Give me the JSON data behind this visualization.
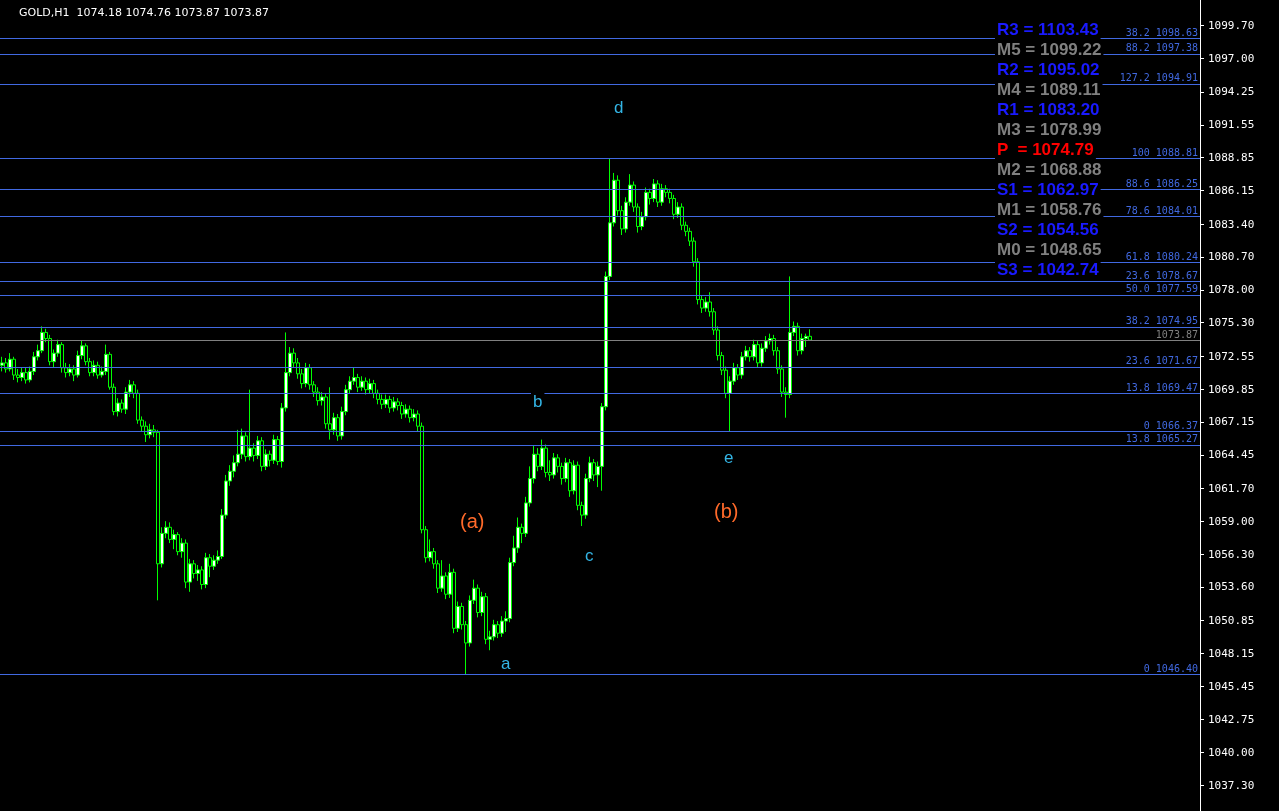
{
  "chart_data": {
    "type": "candlestick",
    "title": "GOLD,H1  1074.18 1074.76 1073.87 1073.87",
    "color": "#00ff00",
    "categories": [
      null,
      null,
      null,
      null,
      null,
      null,
      null,
      null,
      null,
      null,
      null,
      null,
      null,
      null,
      null,
      null,
      null,
      null,
      null,
      null,
      null,
      null,
      null,
      null,
      null,
      null,
      null,
      null,
      null,
      null,
      null,
      null,
      null,
      null,
      null,
      null,
      null,
      null,
      null,
      null,
      null,
      null,
      null,
      null,
      null,
      null,
      null,
      null,
      null,
      null,
      null,
      null,
      null,
      null,
      null,
      null,
      null,
      null,
      null,
      null,
      null,
      null,
      null,
      null,
      null,
      null,
      null,
      null,
      null,
      null,
      null,
      null,
      null,
      null,
      null,
      null,
      null,
      null,
      null,
      null,
      null,
      null,
      null,
      null,
      null,
      null,
      null,
      null,
      null,
      null,
      null,
      null,
      null,
      null,
      null,
      null,
      null,
      null,
      null,
      null,
      null,
      null,
      null,
      null,
      null,
      null,
      null,
      null,
      null,
      null,
      null,
      null,
      null,
      null,
      null,
      null,
      null,
      null,
      null,
      null,
      null,
      null,
      null,
      null,
      null,
      null,
      null,
      null,
      null,
      null,
      null,
      null,
      null,
      null,
      null,
      null,
      null,
      null,
      null,
      null,
      null,
      null,
      null,
      null,
      null,
      null,
      null,
      null,
      null,
      null,
      null,
      null,
      null,
      null,
      null,
      null,
      null,
      null,
      null,
      null,
      null,
      null,
      null,
      null,
      null,
      null,
      null,
      null,
      null,
      null,
      null,
      null,
      null,
      null,
      null,
      null,
      null,
      null,
      null,
      null,
      null,
      null,
      null,
      null,
      null,
      null,
      null,
      null,
      null,
      null,
      null,
      null,
      null,
      null,
      null,
      null,
      null,
      null,
      null,
      null,
      null,
      null,
      null,
      null,
      null,
      null,
      null,
      null,
      null,
      null,
      null,
      null,
      null,
      null,
      null,
      null,
      null,
      null,
      null,
      null,
      null,
      null,
      null,
      null,
      null,
      null,
      null,
      null,
      null,
      null,
      null,
      null,
      null,
      null,
      null,
      null,
      null,
      null,
      null,
      null,
      null,
      null,
      null,
      null,
      null,
      null,
      null,
      null,
      null,
      null,
      null,
      null,
      null,
      null,
      null,
      null,
      null,
      null,
      null,
      null,
      null,
      null,
      null,
      null,
      null,
      null,
      null,
      null,
      null,
      null,
      null,
      null,
      null,
      null,
      null,
      null,
      null,
      null,
      null,
      null,
      null,
      null,
      null,
      null,
      null,
      null,
      null,
      null,
      null,
      null,
      null,
      null,
      null,
      null,
      null,
      null,
      null,
      null,
      null,
      null
    ],
    "ohlc": [
      [
        1071.8,
        1072.5,
        1071.3,
        1072.0
      ],
      [
        1072.0,
        1072.4,
        1071.2,
        1071.5
      ],
      [
        1071.5,
        1072.8,
        1071.3,
        1072.3
      ],
      [
        1072.3,
        1072.5,
        1070.6,
        1071.0
      ],
      [
        1071.0,
        1071.5,
        1070.4,
        1070.8
      ],
      [
        1070.8,
        1071.6,
        1070.5,
        1071.2
      ],
      [
        1071.2,
        1071.6,
        1070.3,
        1070.6
      ],
      [
        1070.6,
        1071.7,
        1070.4,
        1071.3
      ],
      [
        1071.3,
        1072.9,
        1071.0,
        1072.5
      ],
      [
        1072.5,
        1073.5,
        1072.2,
        1073.0
      ],
      [
        1073.0,
        1075.0,
        1072.8,
        1074.5
      ],
      [
        1074.5,
        1074.8,
        1073.7,
        1074.0
      ],
      [
        1074.0,
        1074.3,
        1071.8,
        1072.1
      ],
      [
        1072.1,
        1073.1,
        1071.6,
        1072.8
      ],
      [
        1072.8,
        1073.9,
        1072.5,
        1073.5
      ],
      [
        1073.5,
        1073.7,
        1071.2,
        1071.6
      ],
      [
        1071.6,
        1072.0,
        1070.8,
        1071.2
      ],
      [
        1071.2,
        1071.9,
        1070.9,
        1071.5
      ],
      [
        1071.5,
        1071.8,
        1070.5,
        1071.0
      ],
      [
        1071.0,
        1073.0,
        1070.8,
        1072.6
      ],
      [
        1072.6,
        1073.8,
        1072.3,
        1073.4
      ],
      [
        1073.4,
        1073.6,
        1071.8,
        1072.1
      ],
      [
        1072.1,
        1072.4,
        1070.9,
        1071.2
      ],
      [
        1071.2,
        1072.2,
        1070.9,
        1071.8
      ],
      [
        1071.8,
        1072.1,
        1070.7,
        1071.0
      ],
      [
        1071.0,
        1071.7,
        1070.8,
        1071.3
      ],
      [
        1071.3,
        1073.5,
        1071.0,
        1072.7
      ],
      [
        1072.7,
        1072.9,
        1069.8,
        1070.0
      ],
      [
        1070.0,
        1070.3,
        1067.7,
        1068.0
      ],
      [
        1068.0,
        1069.1,
        1067.6,
        1068.7
      ],
      [
        1068.7,
        1069.0,
        1067.9,
        1068.2
      ],
      [
        1068.2,
        1070.0,
        1067.8,
        1069.6
      ],
      [
        1069.6,
        1070.6,
        1069.2,
        1070.2
      ],
      [
        1070.2,
        1070.5,
        1069.1,
        1069.5
      ],
      [
        1069.5,
        1069.8,
        1067.0,
        1067.3
      ],
      [
        1067.3,
        1067.6,
        1066.4,
        1066.8
      ],
      [
        1066.8,
        1067.2,
        1065.5,
        1066.1
      ],
      [
        1066.1,
        1067.0,
        1065.8,
        1066.5
      ],
      [
        1066.5,
        1066.9,
        1065.9,
        1066.3
      ],
      [
        1066.3,
        1066.5,
        1052.5,
        1055.5
      ],
      [
        1055.5,
        1058.5,
        1055.2,
        1058.0
      ],
      [
        1058.0,
        1059.0,
        1057.6,
        1058.5
      ],
      [
        1058.5,
        1058.9,
        1057.2,
        1057.5
      ],
      [
        1057.5,
        1058.3,
        1056.7,
        1057.9
      ],
      [
        1057.9,
        1058.1,
        1056.2,
        1056.5
      ],
      [
        1056.5,
        1057.6,
        1056.0,
        1057.2
      ],
      [
        1057.2,
        1057.5,
        1053.5,
        1054.0
      ],
      [
        1054.0,
        1055.9,
        1053.2,
        1055.5
      ],
      [
        1055.5,
        1055.8,
        1054.3,
        1054.7
      ],
      [
        1054.7,
        1055.4,
        1054.1,
        1055.0
      ],
      [
        1055.0,
        1055.3,
        1053.4,
        1053.8
      ],
      [
        1053.8,
        1056.4,
        1053.5,
        1056.0
      ],
      [
        1056.0,
        1056.3,
        1054.4,
        1055.3
      ],
      [
        1055.3,
        1056.2,
        1055.0,
        1055.8
      ],
      [
        1055.8,
        1056.6,
        1055.5,
        1056.1
      ],
      [
        1056.1,
        1060.0,
        1055.9,
        1059.5
      ],
      [
        1059.5,
        1062.8,
        1059.2,
        1062.3
      ],
      [
        1062.3,
        1063.6,
        1061.9,
        1063.1
      ],
      [
        1063.1,
        1064.4,
        1062.6,
        1063.8
      ],
      [
        1063.8,
        1066.5,
        1063.5,
        1064.5
      ],
      [
        1064.5,
        1066.6,
        1064.1,
        1066.0
      ],
      [
        1066.0,
        1066.3,
        1063.9,
        1064.3
      ],
      [
        1064.3,
        1069.8,
        1064.0,
        1065.0
      ],
      [
        1065.0,
        1065.4,
        1063.9,
        1064.4
      ],
      [
        1064.4,
        1066.0,
        1064.1,
        1065.6
      ],
      [
        1065.6,
        1065.9,
        1063.1,
        1063.5
      ],
      [
        1063.5,
        1064.9,
        1063.2,
        1064.5
      ],
      [
        1064.5,
        1064.8,
        1063.5,
        1064.0
      ],
      [
        1064.0,
        1066.1,
        1063.7,
        1065.7
      ],
      [
        1065.7,
        1066.0,
        1063.6,
        1063.9
      ],
      [
        1063.9,
        1068.7,
        1063.4,
        1068.3
      ],
      [
        1068.3,
        1074.5,
        1068.0,
        1071.2
      ],
      [
        1071.2,
        1073.3,
        1070.9,
        1072.8
      ],
      [
        1072.8,
        1073.2,
        1071.6,
        1072.0
      ],
      [
        1072.0,
        1072.4,
        1070.7,
        1071.1
      ],
      [
        1071.1,
        1071.5,
        1069.9,
        1070.3
      ],
      [
        1070.3,
        1072.0,
        1070.0,
        1071.6
      ],
      [
        1071.6,
        1071.9,
        1069.8,
        1070.2
      ],
      [
        1070.2,
        1070.5,
        1069.2,
        1069.6
      ],
      [
        1069.6,
        1070.0,
        1068.5,
        1068.9
      ],
      [
        1068.9,
        1069.6,
        1068.5,
        1069.2
      ],
      [
        1069.2,
        1069.5,
        1066.6,
        1067.0
      ],
      [
        1067.0,
        1070.0,
        1065.7,
        1066.5
      ],
      [
        1066.5,
        1067.9,
        1066.1,
        1067.5
      ],
      [
        1067.5,
        1067.8,
        1065.6,
        1066.0
      ],
      [
        1066.0,
        1068.4,
        1065.7,
        1068.0
      ],
      [
        1068.0,
        1070.2,
        1067.7,
        1069.8
      ],
      [
        1069.8,
        1070.9,
        1069.5,
        1070.5
      ],
      [
        1070.5,
        1071.6,
        1070.2,
        1070.8
      ],
      [
        1070.8,
        1071.1,
        1069.6,
        1070.0
      ],
      [
        1070.0,
        1070.9,
        1069.7,
        1070.5
      ],
      [
        1070.5,
        1070.8,
        1069.4,
        1069.8
      ],
      [
        1069.8,
        1070.7,
        1069.5,
        1070.3
      ],
      [
        1070.3,
        1070.6,
        1069.1,
        1069.5
      ],
      [
        1069.5,
        1069.8,
        1068.6,
        1069.0
      ],
      [
        1069.0,
        1069.4,
        1068.2,
        1068.6
      ],
      [
        1068.6,
        1069.4,
        1068.3,
        1069.0
      ],
      [
        1069.0,
        1069.3,
        1067.9,
        1068.3
      ],
      [
        1068.3,
        1069.2,
        1068.0,
        1068.8
      ],
      [
        1068.8,
        1069.1,
        1068.1,
        1068.5
      ],
      [
        1068.5,
        1068.8,
        1067.4,
        1067.8
      ],
      [
        1067.8,
        1068.6,
        1067.5,
        1068.2
      ],
      [
        1068.2,
        1068.5,
        1067.1,
        1067.5
      ],
      [
        1067.5,
        1068.2,
        1067.2,
        1067.8
      ],
      [
        1067.8,
        1068.1,
        1066.4,
        1066.8
      ],
      [
        1066.8,
        1067.1,
        1058.0,
        1058.3
      ],
      [
        1058.3,
        1058.6,
        1055.6,
        1056.0
      ],
      [
        1056.0,
        1057.5,
        1055.7,
        1056.5
      ],
      [
        1056.5,
        1056.8,
        1055.1,
        1055.5
      ],
      [
        1055.5,
        1055.8,
        1053.1,
        1053.5
      ],
      [
        1053.5,
        1055.8,
        1053.2,
        1054.5
      ],
      [
        1054.5,
        1054.8,
        1052.6,
        1053.0
      ],
      [
        1053.0,
        1055.5,
        1052.7,
        1054.8
      ],
      [
        1054.8,
        1055.1,
        1049.8,
        1050.2
      ],
      [
        1050.2,
        1052.4,
        1049.9,
        1052.0
      ],
      [
        1052.0,
        1052.3,
        1050.1,
        1050.5
      ],
      [
        1050.5,
        1050.8,
        1046.4,
        1049.0
      ],
      [
        1049.0,
        1052.9,
        1048.7,
        1052.5
      ],
      [
        1052.5,
        1054.2,
        1052.2,
        1053.5
      ],
      [
        1053.5,
        1053.8,
        1051.1,
        1051.5
      ],
      [
        1051.5,
        1053.2,
        1051.2,
        1052.8
      ],
      [
        1052.8,
        1053.1,
        1048.9,
        1049.3
      ],
      [
        1049.3,
        1050.0,
        1048.4,
        1049.5
      ],
      [
        1049.5,
        1050.9,
        1049.2,
        1050.5
      ],
      [
        1050.5,
        1050.8,
        1049.4,
        1049.8
      ],
      [
        1049.8,
        1051.2,
        1049.5,
        1050.8
      ],
      [
        1050.8,
        1051.6,
        1049.9,
        1051.0
      ],
      [
        1051.0,
        1056.0,
        1050.7,
        1055.6
      ],
      [
        1055.6,
        1057.8,
        1055.3,
        1056.8
      ],
      [
        1056.8,
        1059.3,
        1056.4,
        1058.5
      ],
      [
        1058.5,
        1058.8,
        1057.2,
        1058.0
      ],
      [
        1058.0,
        1061.0,
        1057.7,
        1060.5
      ],
      [
        1060.5,
        1063.5,
        1060.2,
        1062.5
      ],
      [
        1062.5,
        1065.2,
        1062.1,
        1064.5
      ],
      [
        1064.5,
        1065.0,
        1063.1,
        1063.5
      ],
      [
        1063.5,
        1065.7,
        1063.2,
        1065.0
      ],
      [
        1065.0,
        1065.3,
        1062.6,
        1063.0
      ],
      [
        1063.0,
        1064.0,
        1062.3,
        1062.8
      ],
      [
        1062.8,
        1064.6,
        1062.5,
        1064.2
      ],
      [
        1064.2,
        1064.5,
        1063.0,
        1063.5
      ],
      [
        1063.5,
        1063.8,
        1062.0,
        1062.5
      ],
      [
        1062.5,
        1064.2,
        1062.2,
        1063.8
      ],
      [
        1063.8,
        1064.1,
        1061.0,
        1061.5
      ],
      [
        1061.5,
        1064.0,
        1061.2,
        1063.6
      ],
      [
        1063.6,
        1063.9,
        1059.9,
        1060.3
      ],
      [
        1060.3,
        1060.6,
        1058.6,
        1059.5
      ],
      [
        1059.5,
        1062.9,
        1059.2,
        1062.5
      ],
      [
        1062.5,
        1064.3,
        1062.2,
        1063.8
      ],
      [
        1063.8,
        1064.1,
        1062.3,
        1062.8
      ],
      [
        1062.8,
        1063.9,
        1061.8,
        1063.5
      ],
      [
        1063.5,
        1068.7,
        1061.5,
        1068.4
      ],
      [
        1068.4,
        1079.5,
        1068.1,
        1079.1
      ],
      [
        1079.1,
        1088.8,
        1078.8,
        1083.5
      ],
      [
        1083.5,
        1087.6,
        1083.2,
        1087.0
      ],
      [
        1087.0,
        1087.4,
        1084.1,
        1084.5
      ],
      [
        1084.5,
        1084.9,
        1082.5,
        1083.0
      ],
      [
        1083.0,
        1085.6,
        1082.7,
        1085.2
      ],
      [
        1085.2,
        1087.5,
        1084.9,
        1086.6
      ],
      [
        1086.6,
        1086.9,
        1084.4,
        1084.8
      ],
      [
        1084.8,
        1085.1,
        1082.7,
        1083.2
      ],
      [
        1083.2,
        1084.4,
        1082.9,
        1084.0
      ],
      [
        1084.0,
        1086.4,
        1083.7,
        1086.0
      ],
      [
        1086.0,
        1086.3,
        1085.0,
        1085.5
      ],
      [
        1085.5,
        1087.1,
        1085.2,
        1086.7
      ],
      [
        1086.7,
        1087.0,
        1084.8,
        1085.2
      ],
      [
        1085.2,
        1086.7,
        1084.9,
        1086.3
      ],
      [
        1086.3,
        1086.6,
        1085.6,
        1086.0
      ],
      [
        1086.0,
        1086.3,
        1085.1,
        1085.5
      ],
      [
        1085.5,
        1085.8,
        1083.8,
        1084.2
      ],
      [
        1084.2,
        1085.2,
        1083.9,
        1084.8
      ],
      [
        1084.8,
        1085.1,
        1082.9,
        1083.3
      ],
      [
        1083.3,
        1083.6,
        1082.4,
        1082.8
      ],
      [
        1082.8,
        1083.1,
        1081.6,
        1082.0
      ],
      [
        1082.0,
        1082.3,
        1079.9,
        1080.3
      ],
      [
        1080.3,
        1080.6,
        1076.8,
        1077.2
      ],
      [
        1077.2,
        1077.5,
        1076.1,
        1076.5
      ],
      [
        1076.5,
        1077.4,
        1076.2,
        1077.0
      ],
      [
        1077.0,
        1077.8,
        1075.8,
        1076.2
      ],
      [
        1076.2,
        1076.5,
        1074.3,
        1074.7
      ],
      [
        1074.7,
        1075.0,
        1072.2,
        1072.6
      ],
      [
        1072.6,
        1072.9,
        1071.0,
        1071.4
      ],
      [
        1071.4,
        1071.7,
        1069.1,
        1069.5
      ],
      [
        1069.5,
        1070.9,
        1066.4,
        1070.5
      ],
      [
        1070.5,
        1072.0,
        1070.2,
        1071.6
      ],
      [
        1071.6,
        1071.9,
        1070.6,
        1071.0
      ],
      [
        1071.0,
        1072.9,
        1070.7,
        1072.5
      ],
      [
        1072.5,
        1073.4,
        1072.2,
        1073.0
      ],
      [
        1073.0,
        1073.3,
        1072.1,
        1072.5
      ],
      [
        1072.5,
        1073.9,
        1072.2,
        1073.5
      ],
      [
        1073.5,
        1073.8,
        1071.6,
        1072.0
      ],
      [
        1072.0,
        1073.6,
        1071.7,
        1073.2
      ],
      [
        1073.2,
        1074.2,
        1072.9,
        1073.8
      ],
      [
        1073.8,
        1074.4,
        1073.5,
        1074.0
      ],
      [
        1074.0,
        1074.3,
        1072.6,
        1073.0
      ],
      [
        1073.0,
        1073.3,
        1071.1,
        1071.5
      ],
      [
        1071.5,
        1071.8,
        1069.2,
        1069.6
      ],
      [
        1069.6,
        1070.0,
        1067.5,
        1069.4
      ],
      [
        1069.4,
        1079.1,
        1069.1,
        1074.5
      ],
      [
        1074.5,
        1075.4,
        1074.2,
        1075.0
      ],
      [
        1075.0,
        1075.3,
        1072.6,
        1073.0
      ],
      [
        1073.0,
        1074.4,
        1072.7,
        1074.0
      ],
      [
        1074.0,
        1074.4,
        1073.3,
        1074.18
      ],
      [
        1074.18,
        1074.76,
        1073.87,
        1073.87
      ],
      null,
      null,
      null,
      null,
      null,
      null,
      null,
      null,
      null,
      null,
      null,
      null,
      null,
      null,
      null,
      null,
      null,
      null,
      null,
      null,
      null,
      null,
      null,
      null,
      null,
      null,
      null,
      null,
      null,
      null,
      null,
      null,
      null,
      null,
      null,
      null,
      null,
      null,
      null,
      null,
      null,
      null,
      null,
      null,
      null,
      null,
      null,
      null,
      null,
      null,
      null,
      null,
      null,
      null,
      null,
      null,
      null,
      null,
      null,
      null,
      null,
      null,
      null,
      null,
      null,
      null,
      null,
      null,
      null,
      null,
      null,
      null,
      null,
      null,
      null,
      null,
      null,
      null,
      null,
      null,
      null,
      null,
      null,
      null,
      null,
      null,
      null,
      null,
      null,
      null,
      null,
      null,
      null,
      null,
      null,
      null,
      null
    ],
    "ylim": [
      1035.2,
      1101.8
    ],
    "yticks": [
      {
        "value": 1099.7,
        "label": "1099.70"
      },
      {
        "value": 1097,
        "label": "1097.00"
      },
      {
        "value": 1094.25,
        "label": "1094.25"
      },
      {
        "value": 1091.55,
        "label": "1091.55"
      },
      {
        "value": 1088.85,
        "label": "1088.85"
      },
      {
        "value": 1086.15,
        "label": "1086.15"
      },
      {
        "value": 1083.4,
        "label": "1083.40"
      },
      {
        "value": 1080.7,
        "label": "1080.70"
      },
      {
        "value": 1078,
        "label": "1078.00"
      },
      {
        "value": 1075.3,
        "label": "1075.30"
      },
      {
        "value": 1072.55,
        "label": "1072.55"
      },
      {
        "value": 1069.85,
        "label": "1069.85"
      },
      {
        "value": 1067.15,
        "label": "1067.15"
      },
      {
        "value": 1064.45,
        "label": "1064.45"
      },
      {
        "value": 1061.7,
        "label": "1061.70"
      },
      {
        "value": 1059,
        "label": "1059.00"
      },
      {
        "value": 1056.3,
        "label": "1056.30"
      },
      {
        "value": 1053.6,
        "label": "1053.60"
      },
      {
        "value": 1050.85,
        "label": "1050.85"
      },
      {
        "value": 1048.15,
        "label": "1048.15"
      },
      {
        "value": 1045.45,
        "label": "1045.45"
      },
      {
        "value": 1042.75,
        "label": "1042.75"
      },
      {
        "value": 1040,
        "label": "1040.00"
      },
      {
        "value": 1037.3,
        "label": "1037.30"
      }
    ],
    "tick_labels": "y",
    "grid": false,
    "ref_lines": [
      {
        "axis": "y",
        "value": 1098.63,
        "label": "38.2 1098.63",
        "color": "#4169e1"
      },
      {
        "axis": "y",
        "value": 1097.38,
        "label": "88.2 1097.38",
        "color": "#4169e1"
      },
      {
        "axis": "y",
        "value": 1094.91,
        "label": "127.2 1094.91",
        "color": "#4169e1"
      },
      {
        "axis": "y",
        "value": 1088.81,
        "label": "100 1088.81",
        "color": "#4169e1"
      },
      {
        "axis": "y",
        "value": 1086.25,
        "label": "88.6 1086.25",
        "color": "#4169e1"
      },
      {
        "axis": "y",
        "value": 1084.01,
        "label": "78.6 1084.01",
        "color": "#4169e1"
      },
      {
        "axis": "y",
        "value": 1080.24,
        "label": "61.8 1080.24",
        "color": "#4169e1"
      },
      {
        "axis": "y",
        "value": 1078.67,
        "label": "23.6 1078.67",
        "color": "#4169e1"
      },
      {
        "axis": "y",
        "value": 1077.59,
        "label": "50.0 1077.59",
        "color": "#4169e1"
      },
      {
        "axis": "y",
        "value": 1074.95,
        "label": "38.2 1074.95",
        "color": "#4169e1"
      },
      {
        "axis": "y",
        "value": 1073.87,
        "label": "1073.87",
        "color": "#808080"
      },
      {
        "axis": "y",
        "value": 1071.67,
        "label": "23.6 1071.67",
        "color": "#4169e1"
      },
      {
        "axis": "y",
        "value": 1069.47,
        "label": "13.8 1069.47",
        "color": "#4169e1"
      },
      {
        "axis": "y",
        "value": 1066.37,
        "label": "0 1066.37",
        "color": "#4169e1"
      },
      {
        "axis": "y",
        "value": 1065.27,
        "label": "13.8 1065.27",
        "color": "#4169e1"
      },
      {
        "axis": "y",
        "value": 1046.4,
        "label": "0 1046.40",
        "color": "#4169e1"
      }
    ],
    "annotations": [
      "R3 = 1103.43",
      "M5 = 1099.22",
      "R2 = 1095.02",
      "M4 = 1089.11",
      "R1 = 1083.20",
      "M3 = 1078.99",
      "P  = 1074.79",
      "M2 = 1068.88",
      "S1 = 1062.97",
      "M1 = 1058.76",
      "S2 = 1054.56",
      "M0 = 1048.65",
      "S3 = 1042.74",
      "d",
      "b",
      "(a)",
      "c",
      "(b)",
      "a",
      "e"
    ]
  }
}
